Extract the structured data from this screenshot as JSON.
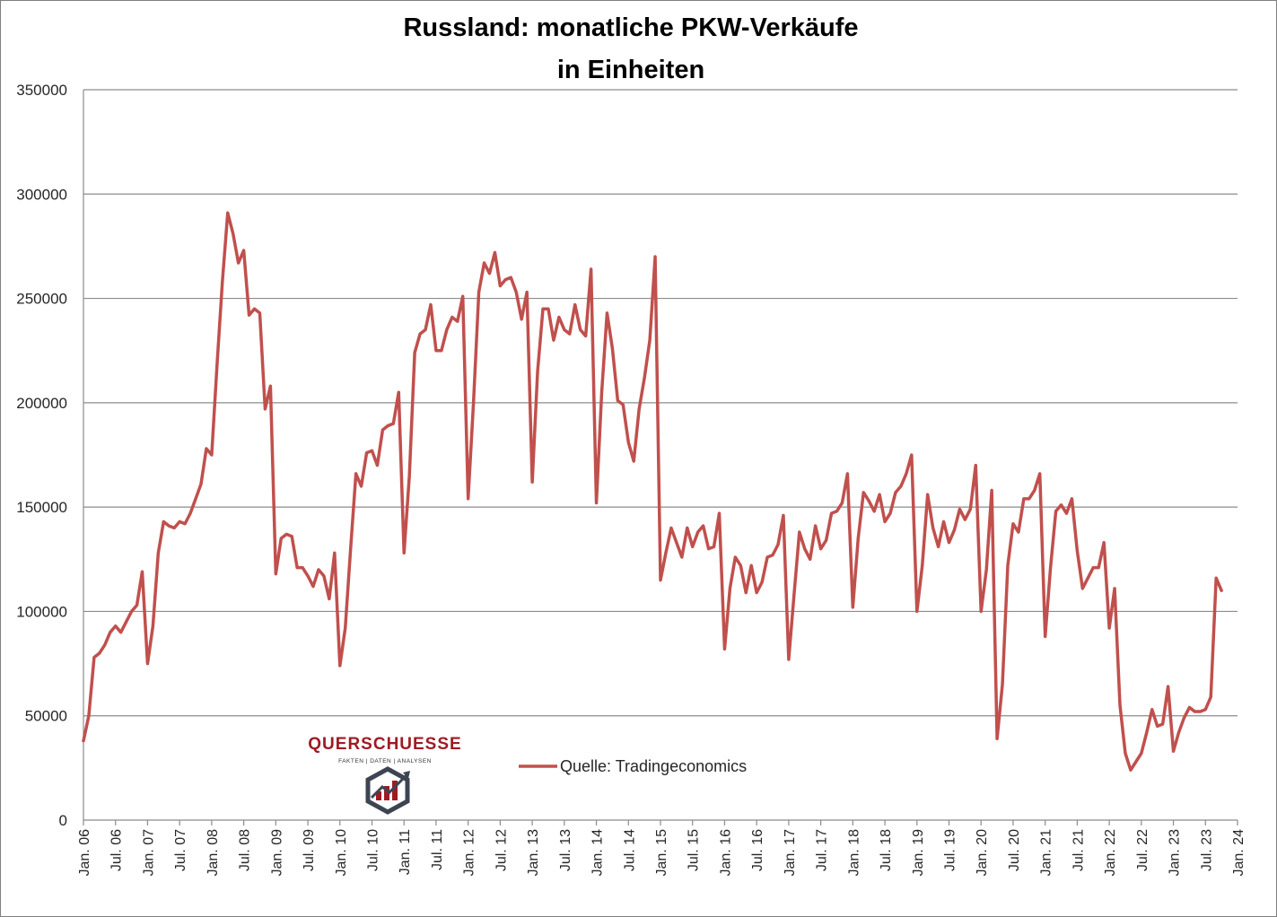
{
  "chart_data": {
    "type": "line",
    "title_line1": "Russland: monatliche PKW-Verkäufe",
    "title_line2": "in Einheiten",
    "ylim": [
      0,
      350000
    ],
    "yticks": [
      "0",
      "50000",
      "100000",
      "150000",
      "200000",
      "250000",
      "300000",
      "350000"
    ],
    "ytick_values": [
      0,
      50000,
      100000,
      150000,
      200000,
      250000,
      300000,
      350000
    ],
    "xticks": [
      "Jan. 06",
      "Jul. 06",
      "Jan. 07",
      "Jul. 07",
      "Jan. 08",
      "Jul. 08",
      "Jan. 09",
      "Jul. 09",
      "Jan. 10",
      "Jul. 10",
      "Jan. 11",
      "Jul. 11",
      "Jan. 12",
      "Jul. 12",
      "Jan. 13",
      "Jul. 13",
      "Jan. 14",
      "Jul. 14",
      "Jan. 15",
      "Jul. 15",
      "Jan. 16",
      "Jul. 16",
      "Jan. 17",
      "Jul. 17",
      "Jan. 18",
      "Jul. 18",
      "Jan. 19",
      "Jul. 19",
      "Jan. 20",
      "Jul. 20",
      "Jan. 21",
      "Jul. 21",
      "Jan. 22",
      "Jul. 22",
      "Jan. 23",
      "Jul. 23",
      "Jan. 24"
    ],
    "x_start": "2006-01",
    "grid": true,
    "legend_position": "center-bottom",
    "series": [
      {
        "name": "Quelle: Tradingeconomics",
        "color": "#c0504d",
        "values": [
          38000,
          50000,
          78000,
          80000,
          84000,
          90000,
          93000,
          90000,
          95000,
          100000,
          103000,
          119000,
          75000,
          93000,
          128000,
          143000,
          141000,
          140000,
          143000,
          142000,
          147000,
          154000,
          161000,
          178000,
          175000,
          218000,
          258000,
          291000,
          281000,
          267000,
          273000,
          242000,
          245000,
          243000,
          197000,
          208000,
          118000,
          135000,
          137000,
          136000,
          121000,
          121000,
          117000,
          112000,
          120000,
          117000,
          106000,
          128000,
          74000,
          92000,
          130000,
          166000,
          160000,
          176000,
          177000,
          170000,
          187000,
          189000,
          190000,
          205000,
          128000,
          165000,
          224000,
          233000,
          235000,
          247000,
          225000,
          225000,
          235000,
          241000,
          239000,
          251000,
          154000,
          200000,
          253000,
          267000,
          262000,
          272000,
          256000,
          259000,
          260000,
          253000,
          240000,
          253000,
          162000,
          215000,
          245000,
          245000,
          230000,
          241000,
          235000,
          233000,
          247000,
          235000,
          232000,
          264000,
          152000,
          205000,
          243000,
          226000,
          201000,
          199000,
          181000,
          172000,
          197000,
          212000,
          230000,
          270000,
          115000,
          128000,
          140000,
          133000,
          126000,
          140000,
          131000,
          138000,
          141000,
          130000,
          131000,
          147000,
          82000,
          111000,
          126000,
          122000,
          109000,
          122000,
          109000,
          114000,
          126000,
          127000,
          132000,
          146000,
          77000,
          108000,
          138000,
          130000,
          125000,
          141000,
          130000,
          134000,
          147000,
          148000,
          152000,
          166000,
          102000,
          135000,
          157000,
          153000,
          148000,
          156000,
          143000,
          147000,
          157000,
          160000,
          166000,
          175000,
          100000,
          122000,
          156000,
          140000,
          131000,
          143000,
          133000,
          139000,
          149000,
          144000,
          149000,
          170000,
          100000,
          120000,
          158000,
          39000,
          65000,
          122000,
          142000,
          138000,
          154000,
          154000,
          158000,
          166000,
          88000,
          121000,
          148000,
          151000,
          147000,
          154000,
          129000,
          111000,
          116000,
          121000,
          121000,
          133000,
          92000,
          111000,
          55000,
          32000,
          24000,
          28000,
          32000,
          42000,
          53000,
          45000,
          46000,
          64000,
          33000,
          42000,
          49000,
          54000,
          52000,
          52000,
          53000,
          59000,
          116000,
          110000
        ]
      }
    ]
  },
  "logo": {
    "name": "QUERSCHUESSE",
    "tagline": "FAKTEN | DATEN | ANALYSEN"
  }
}
